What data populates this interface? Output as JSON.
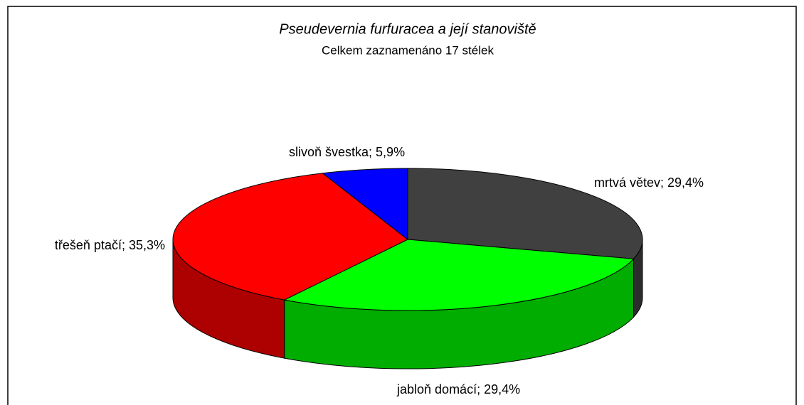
{
  "chart_data": {
    "type": "pie",
    "title": "Pseudevernia furfuracea a její stanoviště",
    "subtitle": "Celkem zaznamenáno 17 stélek",
    "values": [
      29.4,
      29.4,
      35.3,
      5.9
    ],
    "value_labels": [
      "mrtvá větev; 29,4%",
      "jabloň domácí; 29,4%",
      "třešeň ptačí; 35,3%",
      "slivoň švestka; 5,9%"
    ],
    "colors": [
      "#404040",
      "#00ff00",
      "#ff0000",
      "#0000ff"
    ],
    "three_d": true
  }
}
